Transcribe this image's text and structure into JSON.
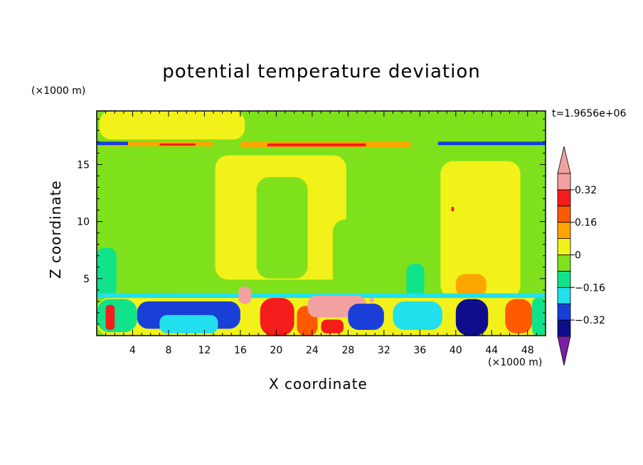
{
  "chart_data": {
    "type": "heatmap",
    "title": "potential temperature deviation",
    "xlabel": "X coordinate",
    "ylabel": "Z coordinate",
    "x_unit": "(×1000 m)",
    "y_unit": "(×1000 m)",
    "time_label": "t=1.9656e+06",
    "xlim": [
      0,
      50
    ],
    "ylim": [
      0,
      19.7
    ],
    "x_ticks": [
      4,
      8,
      12,
      16,
      20,
      24,
      28,
      32,
      36,
      40,
      44,
      48
    ],
    "y_ticks": [
      5,
      10,
      15
    ],
    "colorbar": {
      "levels": [
        -0.4,
        -0.32,
        -0.24,
        -0.16,
        -0.08,
        0,
        0.08,
        0.16,
        0.24,
        0.32,
        0.4
      ],
      "tick_labels": [
        "0.32",
        "0.16",
        "0",
        "−0.16",
        "−0.32"
      ],
      "tick_values": [
        0.32,
        0.16,
        0,
        -0.16,
        -0.32
      ],
      "colors_bottom_to_top": [
        "#7b1fa2",
        "#0e0e8c",
        "#1a3fd9",
        "#22e0ee",
        "#11e38a",
        "#7fe11b",
        "#f2f21a",
        "#ffa500",
        "#ff5a00",
        "#f51c1c",
        "#f2a0a0"
      ]
    },
    "regions": [
      {
        "level": -0.04,
        "x": [
          0,
          50
        ],
        "z": [
          0,
          19.7
        ]
      },
      {
        "level": 0.04,
        "x": [
          13.2,
          27.8
        ],
        "z": [
          4.9,
          15.8
        ]
      },
      {
        "level": 0.04,
        "x": [
          38.3,
          47.2
        ],
        "z": [
          3.3,
          15.3
        ]
      },
      {
        "level": 0.04,
        "x": [
          0.3,
          16.5
        ],
        "z": [
          17.2,
          19.7
        ]
      },
      {
        "level": -0.04,
        "x": [
          17.8,
          23.5
        ],
        "z": [
          5.0,
          13.9
        ]
      },
      {
        "level": -0.04,
        "x": [
          26.3,
          35.2
        ],
        "z": [
          4.0,
          10.2
        ]
      },
      {
        "level": 0.12,
        "x": [
          40.0,
          43.4
        ],
        "z": [
          3.4,
          5.4
        ]
      },
      {
        "level": -0.12,
        "x": [
          0,
          2.2
        ],
        "z": [
          3.4,
          7.7
        ]
      },
      {
        "level": -0.12,
        "x": [
          34.5,
          36.5
        ],
        "z": [
          3.4,
          6.3
        ]
      },
      {
        "level": 0.12,
        "x": [
          0.5,
          13.0
        ],
        "z": [
          16.6,
          17.0
        ]
      },
      {
        "level": 0.12,
        "x": [
          16.0,
          35.0
        ],
        "z": [
          16.5,
          17.0
        ]
      },
      {
        "level": 0.28,
        "x": [
          7.0,
          11.0
        ],
        "z": [
          16.65,
          16.85
        ]
      },
      {
        "level": 0.28,
        "x": [
          19.0,
          30.0
        ],
        "z": [
          16.6,
          16.85
        ]
      },
      {
        "level": -0.28,
        "x": [
          0,
          3.5
        ],
        "z": [
          16.7,
          17.0
        ]
      },
      {
        "level": -0.28,
        "x": [
          38.0,
          50.0
        ],
        "z": [
          16.7,
          17.0
        ]
      },
      {
        "level": -0.2,
        "x": [
          0,
          50
        ],
        "z": [
          3.3,
          3.7
        ]
      },
      {
        "level": 0.04,
        "x": [
          0,
          50
        ],
        "z": [
          0,
          3.3
        ]
      },
      {
        "level": -0.12,
        "x": [
          0,
          4.5
        ],
        "z": [
          0.3,
          3.2
        ]
      },
      {
        "level": -0.28,
        "x": [
          4.5,
          16.0
        ],
        "z": [
          0.6,
          3.0
        ]
      },
      {
        "level": -0.2,
        "x": [
          7.0,
          13.5
        ],
        "z": [
          0.2,
          1.8
        ]
      },
      {
        "level": 0.28,
        "x": [
          18.2,
          22.0
        ],
        "z": [
          0,
          3.3
        ]
      },
      {
        "level": 0.2,
        "x": [
          22.3,
          24.6
        ],
        "z": [
          0,
          2.6
        ]
      },
      {
        "level": 0.36,
        "x": [
          23.5,
          30.0
        ],
        "z": [
          1.6,
          3.5
        ]
      },
      {
        "level": 0.28,
        "x": [
          25.0,
          27.5
        ],
        "z": [
          0.2,
          1.4
        ]
      },
      {
        "level": -0.28,
        "x": [
          28.0,
          32.0
        ],
        "z": [
          0.5,
          2.8
        ]
      },
      {
        "level": -0.2,
        "x": [
          33.0,
          38.5
        ],
        "z": [
          0.5,
          3.0
        ]
      },
      {
        "level": -0.36,
        "x": [
          40.0,
          43.6
        ],
        "z": [
          0,
          3.2
        ]
      },
      {
        "level": 0.2,
        "x": [
          45.5,
          48.5
        ],
        "z": [
          0.2,
          3.2
        ]
      },
      {
        "level": -0.12,
        "x": [
          48.5,
          50.0
        ],
        "z": [
          0,
          3.3
        ]
      },
      {
        "level": 0.28,
        "x": [
          1.0,
          2.0
        ],
        "z": [
          0.5,
          2.7
        ]
      },
      {
        "level": 0.36,
        "x": [
          15.8,
          17.2
        ],
        "z": [
          2.8,
          4.3
        ]
      },
      {
        "level": 0.36,
        "x": [
          30.4,
          30.9
        ],
        "z": [
          2.9,
          3.3
        ]
      },
      {
        "level": 0.28,
        "x": [
          39.5,
          39.8
        ],
        "z": [
          10.9,
          11.3
        ]
      }
    ]
  }
}
